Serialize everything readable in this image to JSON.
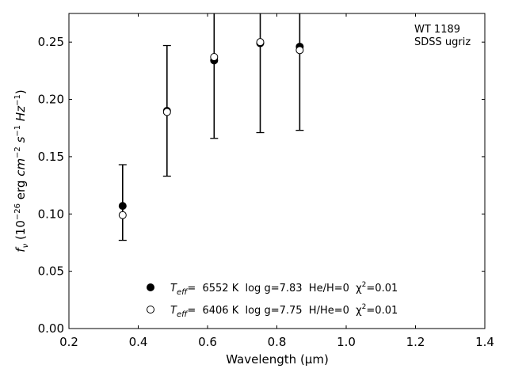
{
  "chart_data": {
    "type": "scatter",
    "title": "",
    "xlabel": "Wavelength (μm)",
    "ylabel": "f_ν (10^−26 erg cm^−2 s^−1 Hz^−1)",
    "xlim": [
      0.2,
      1.4
    ],
    "ylim": [
      0.0,
      0.275
    ],
    "xticks": [
      0.2,
      0.4,
      0.6,
      0.8,
      1.0,
      1.2,
      1.4
    ],
    "xtick_labels": [
      "0.2",
      "0.4",
      "0.6",
      "0.8",
      "1.0",
      "1.2",
      "1.4"
    ],
    "yticks": [
      0.0,
      0.05,
      0.1,
      0.15,
      0.2,
      0.25
    ],
    "ytick_labels": [
      "0.00",
      "0.05",
      "0.10",
      "0.15",
      "0.20",
      "0.25"
    ],
    "grid": false,
    "legend_position": "bottom-center",
    "annotation": [
      "WT 1189",
      "SDSS ugriz"
    ],
    "observed": {
      "x": [
        0.355,
        0.483,
        0.619,
        0.752,
        0.866
      ],
      "y": [
        0.11,
        0.19,
        0.235,
        0.25,
        0.245
      ],
      "yerr": [
        0.033,
        0.057,
        0.069,
        0.079,
        0.072
      ]
    },
    "series": [
      {
        "marker": "filled-circle",
        "label_prefix": "T",
        "label_sub": "eff",
        "label_rest": "=  6552 K  log g=7.83  He/H=0  χ",
        "label_sup": "2",
        "label_end": "=0.01",
        "x": [
          0.355,
          0.483,
          0.619,
          0.752,
          0.866
        ],
        "y": [
          0.107,
          0.19,
          0.234,
          0.249,
          0.246
        ]
      },
      {
        "marker": "open-circle",
        "label_prefix": "T",
        "label_sub": "eff",
        "label_rest": "=  6406 K  log g=7.75  H/He=0  χ",
        "label_sup": "2",
        "label_end": "=0.01",
        "x": [
          0.355,
          0.483,
          0.619,
          0.752,
          0.866
        ],
        "y": [
          0.099,
          0.189,
          0.237,
          0.25,
          0.243
        ]
      }
    ]
  }
}
